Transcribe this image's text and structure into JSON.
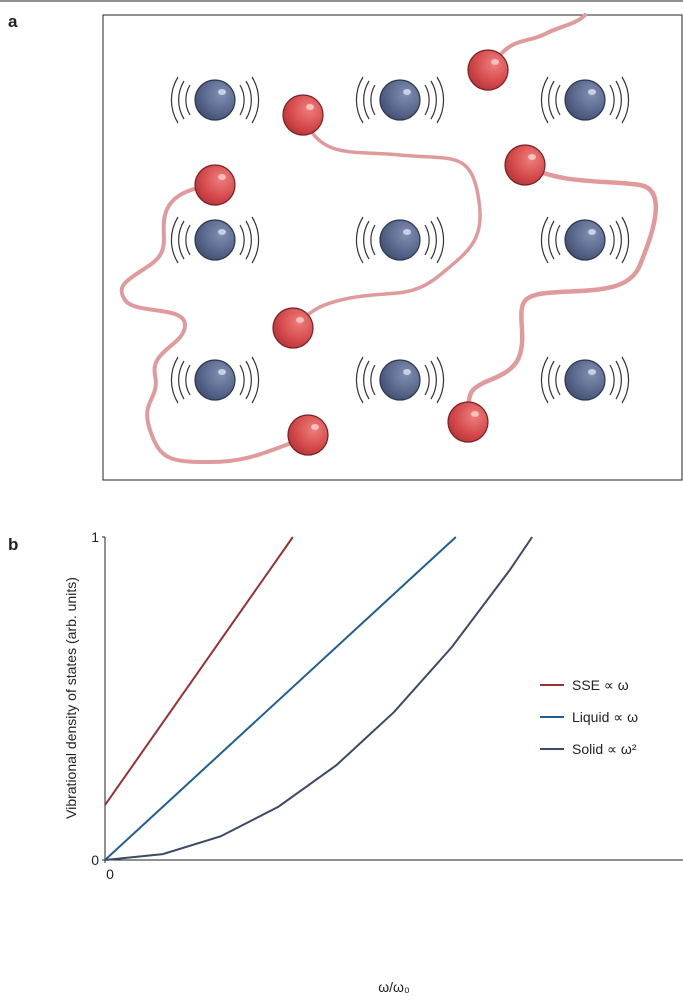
{
  "panel_a": {
    "label": "a"
  },
  "chart_data": {
    "type": "line",
    "panel_label": "b",
    "xlabel": "ω/ω₀",
    "ylabel": "Vibrational density of states (arb. units)",
    "xlim": [
      0,
      1
    ],
    "ylim": [
      0,
      1
    ],
    "xticks": [
      0
    ],
    "yticks": [
      0,
      1
    ],
    "grid": false,
    "legend": "right",
    "series": [
      {
        "name": "SSE ∝ ω",
        "color": "#9b2f35",
        "x": [
          0,
          0.325
        ],
        "values": [
          0.17,
          1
        ]
      },
      {
        "name": "Liquid ∝ ω",
        "color": "#1f5f94",
        "x": [
          0,
          0.607
        ],
        "values": [
          0,
          1
        ]
      },
      {
        "name": "Solid ∝ ω²",
        "color": "#3b4a66",
        "x": [
          0,
          0.1,
          0.2,
          0.3,
          0.4,
          0.5,
          0.6,
          0.7,
          0.739
        ],
        "values": [
          0,
          0.0183,
          0.0732,
          0.165,
          0.293,
          0.458,
          0.659,
          0.897,
          1
        ]
      }
    ]
  }
}
